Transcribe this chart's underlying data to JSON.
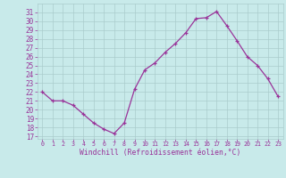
{
  "x": [
    0,
    1,
    2,
    3,
    4,
    5,
    6,
    7,
    8,
    9,
    10,
    11,
    12,
    13,
    14,
    15,
    16,
    17,
    18,
    19,
    20,
    21,
    22,
    23
  ],
  "y": [
    22,
    21,
    21,
    20.5,
    19.5,
    18.5,
    17.8,
    17.3,
    18.5,
    22.3,
    24.5,
    25.3,
    26.5,
    27.5,
    28.7,
    30.3,
    30.4,
    31.1,
    29.5,
    27.8,
    26,
    25,
    23.5,
    21.5
  ],
  "line_color": "#993399",
  "marker": "+",
  "bg_color": "#c8eaea",
  "grid_color": "#aacccc",
  "xlabel": "Windchill (Refroidissement éolien,°C)",
  "ylabel_ticks": [
    17,
    18,
    19,
    20,
    21,
    22,
    23,
    24,
    25,
    26,
    27,
    28,
    29,
    30,
    31
  ],
  "ylim": [
    16.7,
    32.0
  ],
  "xlim": [
    -0.5,
    23.5
  ],
  "xlabel_color": "#993399",
  "tick_color": "#993399",
  "font": "monospace"
}
